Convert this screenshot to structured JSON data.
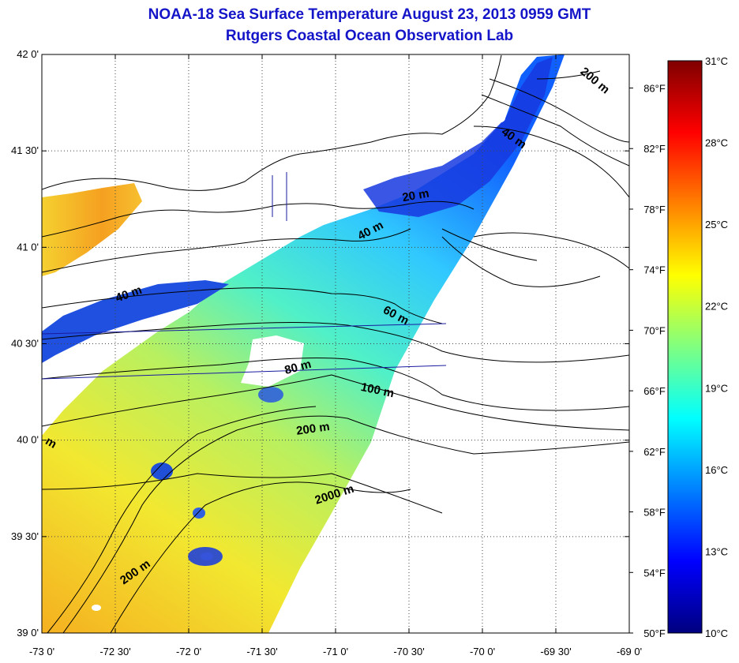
{
  "title": "NOAA-18 Sea Surface Temperature August 23, 2013 0959 GMT",
  "subtitle": "Rutgers Coastal Ocean Observation Lab",
  "colors": {
    "title": "#1414c8",
    "land_outline": "#000000",
    "track_line": "#1a1aa0",
    "colormap": [
      "#00007f",
      "#0000ff",
      "#0080ff",
      "#00ffff",
      "#80ff80",
      "#ffff00",
      "#ff8000",
      "#ff0000",
      "#7f0000"
    ]
  },
  "map": {
    "lon_range": [
      -73,
      -69
    ],
    "lat_range": [
      39,
      42
    ],
    "grid": "dotted",
    "lat_ticks": [
      {
        "value": 42.0,
        "label": "42 0'"
      },
      {
        "value": 41.5,
        "label": "41 30'"
      },
      {
        "value": 41.0,
        "label": "41 0'"
      },
      {
        "value": 40.5,
        "label": "40 30'"
      },
      {
        "value": 40.0,
        "label": "40 0'"
      },
      {
        "value": 39.5,
        "label": "39 30'"
      },
      {
        "value": 39.0,
        "label": "39 0'"
      }
    ],
    "lon_ticks": [
      {
        "value": -73.0,
        "label": "-73 0'"
      },
      {
        "value": -72.5,
        "label": "-72 30'"
      },
      {
        "value": -72.0,
        "label": "-72 0'"
      },
      {
        "value": -71.5,
        "label": "-71 30'"
      },
      {
        "value": -71.0,
        "label": "-71 0'"
      },
      {
        "value": -70.5,
        "label": "-70 30'"
      },
      {
        "value": -70.0,
        "label": "-70 0'"
      },
      {
        "value": -69.5,
        "label": "-69 30'"
      },
      {
        "value": -69.0,
        "label": "-69 0'"
      }
    ],
    "depth_labels": [
      {
        "text": "200 m",
        "lon": -69.25,
        "lat": 41.85,
        "rot": 40
      },
      {
        "text": "40 m",
        "lon": -69.8,
        "lat": 41.55,
        "rot": 35
      },
      {
        "text": "20 m",
        "lon": -70.45,
        "lat": 41.25,
        "rot": -10
      },
      {
        "text": "40 m",
        "lon": -70.75,
        "lat": 41.07,
        "rot": -28
      },
      {
        "text": "40 m",
        "lon": -72.4,
        "lat": 40.74,
        "rot": -20
      },
      {
        "text": "60 m",
        "lon": -70.6,
        "lat": 40.63,
        "rot": 28
      },
      {
        "text": "80 m",
        "lon": -71.25,
        "lat": 40.36,
        "rot": -15
      },
      {
        "text": "100 m",
        "lon": -70.72,
        "lat": 40.24,
        "rot": 12
      },
      {
        "text": "200 m",
        "lon": -71.15,
        "lat": 40.04,
        "rot": -8
      },
      {
        "text": "2000 m",
        "lon": -71.0,
        "lat": 39.7,
        "rot": -18
      },
      {
        "text": "m",
        "lon": -72.95,
        "lat": 39.97,
        "rot": 30
      },
      {
        "text": "200 m",
        "lon": -72.35,
        "lat": 39.3,
        "rot": -35
      }
    ]
  },
  "colorbar": {
    "celsius_range": [
      10,
      31
    ],
    "celsius_labels": [
      "31°C",
      "28°C",
      "25°C",
      "22°C",
      "19°C",
      "16°C",
      "13°C",
      "10°C"
    ],
    "celsius_values": [
      31,
      28,
      25,
      22,
      19,
      16,
      13,
      10
    ],
    "fahrenheit_labels": [
      "86°F",
      "82°F",
      "78°F",
      "74°F",
      "70°F",
      "66°F",
      "62°F",
      "58°F",
      "54°F",
      "50°F"
    ],
    "fahrenheit_values": [
      86,
      82,
      78,
      74,
      70,
      66,
      62,
      58,
      54,
      50
    ]
  }
}
